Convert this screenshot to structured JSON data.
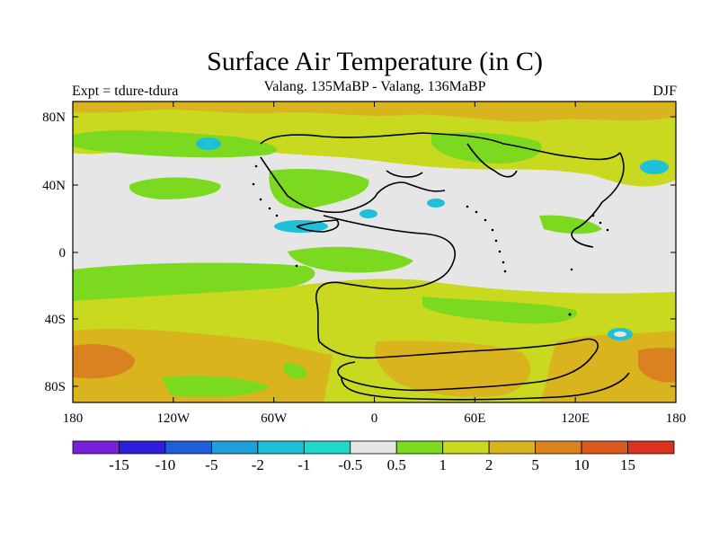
{
  "title": "Surface Air Temperature (in C)",
  "subtitle": "Valang.  135MaBP - Valang.  136MaBP",
  "experiment_label": "Expt = tdure-tdura",
  "season": "DJF",
  "map": {
    "projection": "equirectangular",
    "lon_range": [
      -180,
      180
    ],
    "lat_range": [
      -90,
      90
    ],
    "lon_ticks": [
      "180",
      "120W",
      "60W",
      "0",
      "60E",
      "120E",
      "180"
    ],
    "lat_ticks": [
      "80N",
      "40N",
      "0",
      "40S",
      "80S"
    ],
    "background_fill": "#E6E6E6"
  },
  "colorbar": {
    "colors": [
      "#7A1FD9",
      "#2F1FD9",
      "#1E5FD9",
      "#1E9FD9",
      "#1FC0D9",
      "#1FD9C8",
      "#E6E6E6",
      "#7BD91F",
      "#C8D91F",
      "#D9B41F",
      "#D9821F",
      "#D95A1F",
      "#D9331F"
    ],
    "labels": [
      "-15",
      "-10",
      "-5",
      "-2",
      "-1",
      "-0.5",
      "0.5",
      "1",
      "2",
      "5",
      "10",
      "15"
    ]
  },
  "field_regions": [
    {
      "level": "2",
      "description": "high-latitude north band",
      "color": "#C8D91F"
    },
    {
      "level": "5",
      "description": "north polar fringe",
      "color": "#D9B41F"
    },
    {
      "level": "5",
      "description": "southern mid-latitude ocean",
      "color": "#D9B41F"
    },
    {
      "level": "10",
      "description": "southern ocean maxima",
      "color": "#D9821F"
    },
    {
      "level": "1",
      "description": "subtropical patches",
      "color": "#7BD91F"
    },
    {
      "level": "-1",
      "description": "isolated cooling spots",
      "color": "#1FC0D9"
    }
  ]
}
